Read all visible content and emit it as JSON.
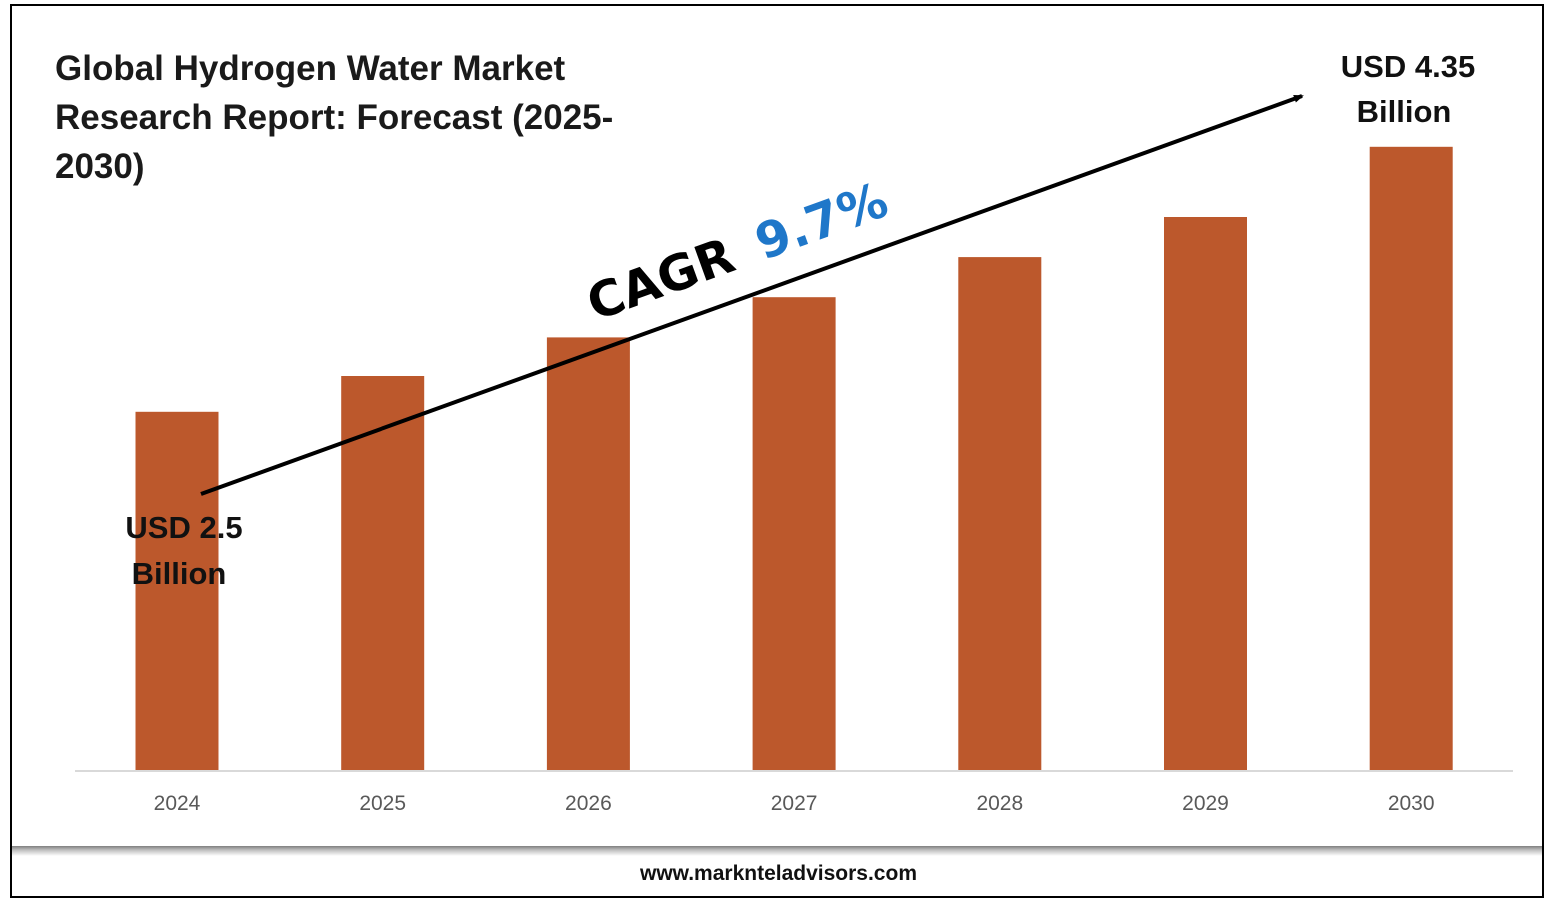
{
  "chart_data": {
    "type": "bar",
    "title": "Global Hydrogen Water Market Research Report: Forecast (2025-2030)",
    "categories": [
      "2024",
      "2025",
      "2026",
      "2027",
      "2028",
      "2029",
      "2030"
    ],
    "values": [
      2.5,
      2.75,
      3.02,
      3.3,
      3.58,
      3.86,
      4.35
    ],
    "ylim": [
      0,
      4.6
    ],
    "bar_color": "#bc582c",
    "grid": false,
    "annotations": {
      "start_value_line1": "USD 2.5",
      "start_value_line2": "Billion",
      "end_value_line1": "USD 4.35",
      "end_value_line2": "Billion",
      "cagr_label": "CAGR",
      "cagr_value": "9.7%",
      "cagr_color": "#1f77c9"
    }
  },
  "footer": {
    "url": "www.marknteladvisors.com"
  }
}
